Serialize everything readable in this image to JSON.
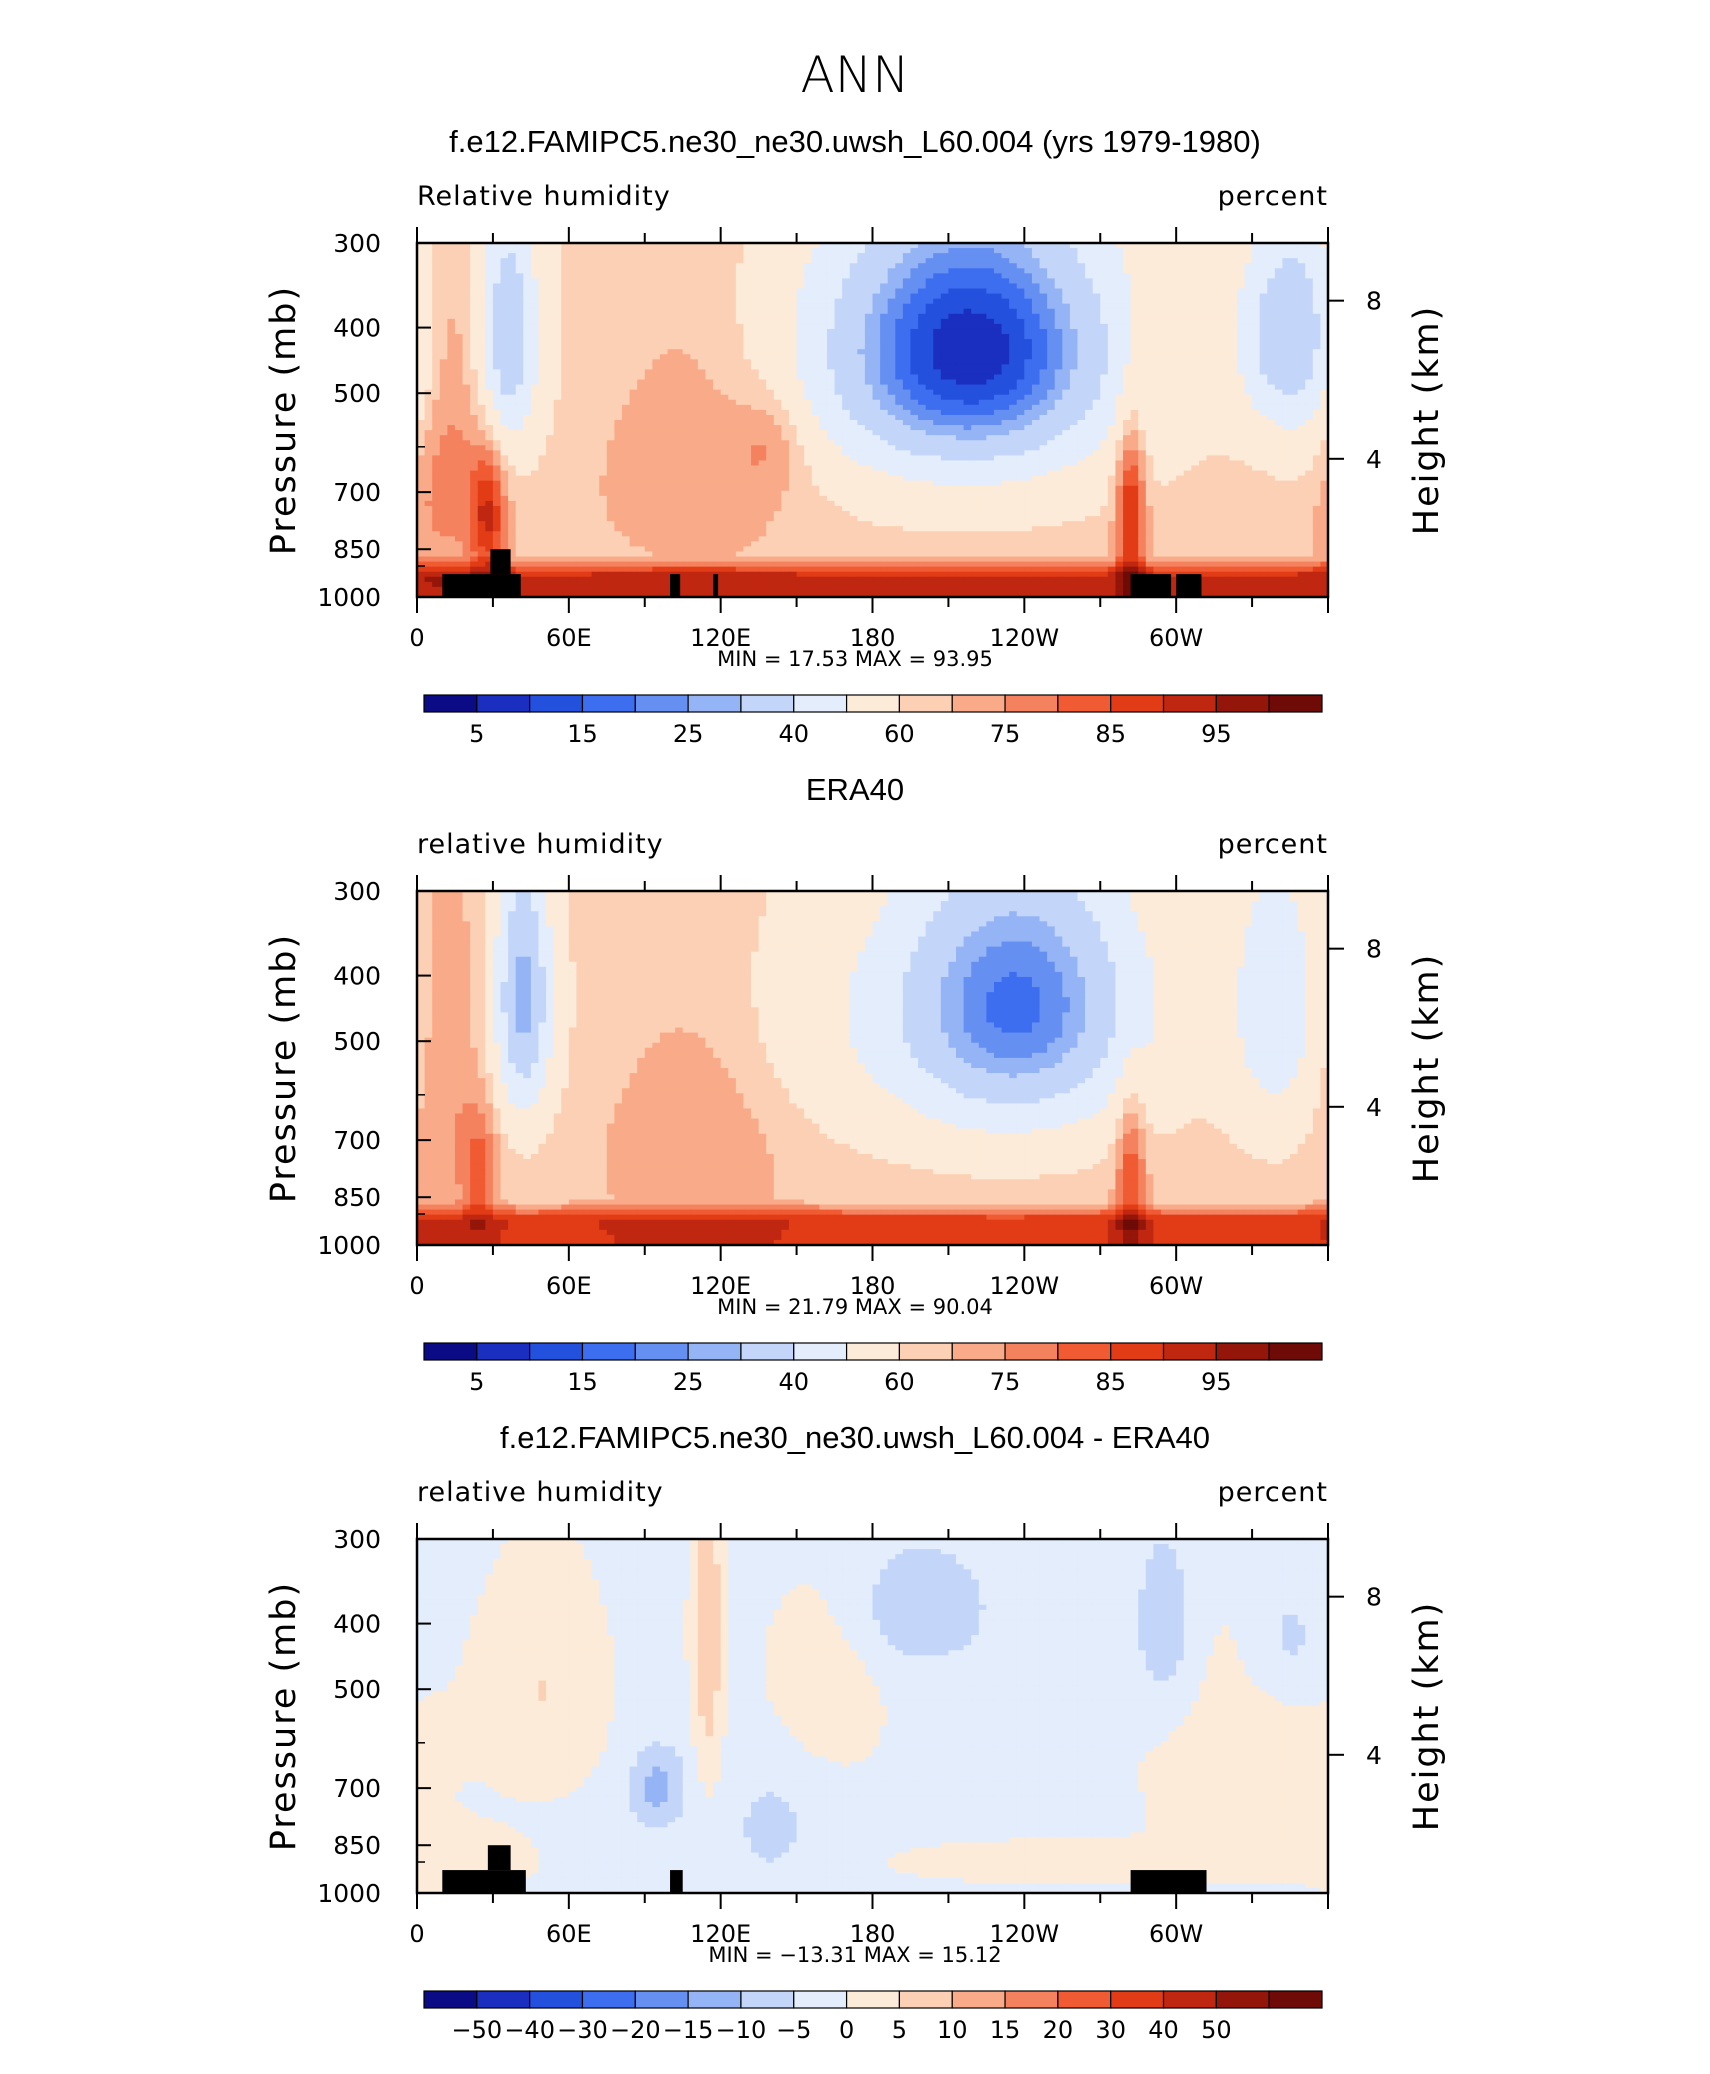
{
  "figure": {
    "title": "ANN",
    "colors": {
      "abs_scale": [
        "#0b0b85",
        "#1a2fbf",
        "#2450de",
        "#3e6ef0",
        "#6590f2",
        "#94b4f5",
        "#c3d6f9",
        "#e3edfc",
        "#fdebd9",
        "#fcd0b4",
        "#f9ab89",
        "#f5825e",
        "#f05b33",
        "#e23c17",
        "#c02710",
        "#941509",
        "#6e0b06"
      ],
      "diff_scale": [
        "#0b0b85",
        "#1a2fbf",
        "#2450de",
        "#3e6ef0",
        "#6590f2",
        "#94b4f5",
        "#c3d6f9",
        "#e3edfc",
        "#fdebd9",
        "#fcd0b4",
        "#f9ab89",
        "#f5825e",
        "#f05b33",
        "#e23c17",
        "#c02710",
        "#941509",
        "#6e0b06"
      ]
    }
  },
  "chart_data": [
    {
      "type": "heatmap",
      "title": "f.e12.FAMIPC5.ne30_ne30.uwsh_L60.004 (yrs 1979-1980)",
      "left_label": "Relative humidity",
      "right_label": "percent",
      "ylabel": "Pressure (mb)",
      "ylabel_right": "Height (km)",
      "yticks": [
        "300",
        "400",
        "500",
        "700",
        "850",
        "1000"
      ],
      "ytick_values": [
        300,
        400,
        500,
        700,
        850,
        1000
      ],
      "yticks_right": [
        "8",
        "4"
      ],
      "xticks": [
        "0",
        "60E",
        "120E",
        "180",
        "120W",
        "60W"
      ],
      "xtick_values": [
        0,
        60,
        120,
        180,
        240,
        300
      ],
      "xlim": [
        0,
        360
      ],
      "ylim": [
        1000,
        300
      ],
      "stats_text": "MIN =   17.53   MAX =   93.95",
      "min": 17.53,
      "max": 93.95,
      "colorbar_labels": [
        "5",
        "15",
        "25",
        "40",
        "60",
        "75",
        "85",
        "95"
      ],
      "colorbar_levels": [
        5,
        10,
        15,
        20,
        25,
        30,
        40,
        50,
        60,
        65,
        70,
        75,
        80,
        85,
        90,
        95
      ],
      "base": 62,
      "boundary": {
        "value": 86,
        "top": 870
      },
      "features": [
        {
          "lon": 220,
          "p": 430,
          "dlon": 38,
          "dp": 140,
          "a": -50
        },
        {
          "lon": 36,
          "p": 410,
          "dlon": 8,
          "dp": 120,
          "a": -30
        },
        {
          "lon": 340,
          "p": 410,
          "dlon": 12,
          "dp": 100,
          "a": -25
        },
        {
          "lon": 160,
          "p": 460,
          "dlon": 80,
          "dp": 160,
          "a": -8
        },
        {
          "lon": 110,
          "p": 560,
          "dlon": 30,
          "dp": 200,
          "a": 12
        },
        {
          "lon": 140,
          "p": 590,
          "dlon": 10,
          "dp": 70,
          "a": 8
        },
        {
          "lon": 28,
          "p": 760,
          "dlon": 5,
          "dp": 120,
          "a": 22
        },
        {
          "lon": 282,
          "p": 760,
          "dlon": 4,
          "dp": 170,
          "a": 25
        },
        {
          "lon": 10,
          "p": 600,
          "dlon": 12,
          "dp": 250,
          "a": 12
        },
        {
          "lon": 355,
          "p": 420,
          "dlon": 10,
          "dp": 150,
          "a": -15
        }
      ],
      "masks": [
        {
          "lon0": 10,
          "lon1": 41,
          "p0": 925,
          "p1": 1000
        },
        {
          "lon0": 29,
          "lon1": 37,
          "p0": 850,
          "p1": 925
        },
        {
          "lon0": 100,
          "lon1": 104,
          "p0": 925,
          "p1": 1000
        },
        {
          "lon0": 117,
          "lon1": 119,
          "p0": 925,
          "p1": 1000
        },
        {
          "lon0": 282,
          "lon1": 298,
          "p0": 925,
          "p1": 1000
        },
        {
          "lon0": 300,
          "lon1": 310,
          "p0": 925,
          "p1": 1000
        }
      ]
    },
    {
      "type": "heatmap",
      "title": "ERA40",
      "left_label": "relative humidity",
      "right_label": "percent",
      "ylabel": "Pressure (mb)",
      "ylabel_right": "Height (km)",
      "yticks": [
        "300",
        "400",
        "500",
        "700",
        "850",
        "1000"
      ],
      "ytick_values": [
        300,
        400,
        500,
        700,
        850,
        1000
      ],
      "yticks_right": [
        "8",
        "4"
      ],
      "xticks": [
        "0",
        "60E",
        "120E",
        "180",
        "120W",
        "60W"
      ],
      "xtick_values": [
        0,
        60,
        120,
        180,
        240,
        300
      ],
      "xlim": [
        0,
        360
      ],
      "ylim": [
        1000,
        300
      ],
      "stats_text": "MIN =   21.79   MAX =   90.04",
      "min": 21.79,
      "max": 90.04,
      "colorbar_labels": [
        "5",
        "15",
        "25",
        "40",
        "60",
        "75",
        "85",
        "95"
      ],
      "colorbar_levels": [
        5,
        10,
        15,
        20,
        25,
        30,
        40,
        50,
        60,
        65,
        70,
        75,
        80,
        85,
        90,
        95
      ],
      "base": 63,
      "boundary": {
        "value": 84,
        "top": 860
      },
      "features": [
        {
          "lon": 238,
          "p": 440,
          "dlon": 34,
          "dp": 150,
          "a": -40
        },
        {
          "lon": 42,
          "p": 430,
          "dlon": 8,
          "dp": 140,
          "a": -35
        },
        {
          "lon": 340,
          "p": 440,
          "dlon": 14,
          "dp": 160,
          "a": -20
        },
        {
          "lon": 170,
          "p": 470,
          "dlon": 70,
          "dp": 160,
          "a": -8
        },
        {
          "lon": 110,
          "p": 620,
          "dlon": 25,
          "dp": 220,
          "a": 9
        },
        {
          "lon": 25,
          "p": 780,
          "dlon": 5,
          "dp": 120,
          "a": 14
        },
        {
          "lon": 282,
          "p": 800,
          "dlon": 4,
          "dp": 160,
          "a": 18
        },
        {
          "lon": 10,
          "p": 560,
          "dlon": 10,
          "dp": 250,
          "a": 8
        }
      ],
      "masks": []
    },
    {
      "type": "heatmap",
      "title": "f.e12.FAMIPC5.ne30_ne30.uwsh_L60.004 - ERA40",
      "left_label": "relative humidity",
      "right_label": "percent",
      "ylabel": "Pressure (mb)",
      "ylabel_right": "Height (km)",
      "yticks": [
        "300",
        "400",
        "500",
        "700",
        "850",
        "1000"
      ],
      "ytick_values": [
        300,
        400,
        500,
        700,
        850,
        1000
      ],
      "yticks_right": [
        "8",
        "4"
      ],
      "xticks": [
        "0",
        "60E",
        "120E",
        "180",
        "120W",
        "60W"
      ],
      "xtick_values": [
        0,
        60,
        120,
        180,
        240,
        300
      ],
      "xlim": [
        0,
        360
      ],
      "ylim": [
        1000,
        300
      ],
      "stats_text": "MIN = −13.31   MAX =   15.12",
      "min": -13.31,
      "max": 15.12,
      "colorbar_labels": [
        "−50",
        "−40",
        "−30",
        "−20",
        "−15",
        "−10",
        "−5",
        "0",
        "5",
        "10",
        "15",
        "20",
        "30",
        "40",
        "50"
      ],
      "colorbar_levels": [
        -50,
        -40,
        -30,
        -20,
        -15,
        -10,
        -5,
        0,
        5,
        10,
        15,
        20,
        30,
        40,
        50
      ],
      "base": -1,
      "boundary": {
        "value": 0,
        "top": 1000
      },
      "features": [
        {
          "lon": 95,
          "p": 700,
          "dlon": 8,
          "dp": 70,
          "a": -11
        },
        {
          "lon": 200,
          "p": 380,
          "dlon": 20,
          "dp": 60,
          "a": -8
        },
        {
          "lon": 295,
          "p": 400,
          "dlon": 8,
          "dp": 80,
          "a": -9
        },
        {
          "lon": 345,
          "p": 420,
          "dlon": 10,
          "dp": 60,
          "a": -6
        },
        {
          "lon": 50,
          "p": 500,
          "dlon": 15,
          "dp": 120,
          "a": 6
        },
        {
          "lon": 115,
          "p": 420,
          "dlon": 4,
          "dp": 180,
          "a": 10
        },
        {
          "lon": 160,
          "p": 500,
          "dlon": 15,
          "dp": 100,
          "a": 5
        },
        {
          "lon": 250,
          "p": 900,
          "dlon": 40,
          "dp": 40,
          "a": 4
        },
        {
          "lon": 330,
          "p": 650,
          "dlon": 30,
          "dp": 200,
          "a": 3
        },
        {
          "lon": 20,
          "p": 900,
          "dlon": 15,
          "dp": 60,
          "a": 5
        },
        {
          "lon": 140,
          "p": 800,
          "dlon": 15,
          "dp": 150,
          "a": -5
        }
      ],
      "masks": [
        {
          "lon0": 10,
          "lon1": 43,
          "p0": 925,
          "p1": 1000
        },
        {
          "lon0": 28,
          "lon1": 37,
          "p0": 850,
          "p1": 925
        },
        {
          "lon0": 100,
          "lon1": 105,
          "p0": 925,
          "p1": 1000
        },
        {
          "lon0": 282,
          "lon1": 312,
          "p0": 925,
          "p1": 1000
        }
      ]
    }
  ]
}
